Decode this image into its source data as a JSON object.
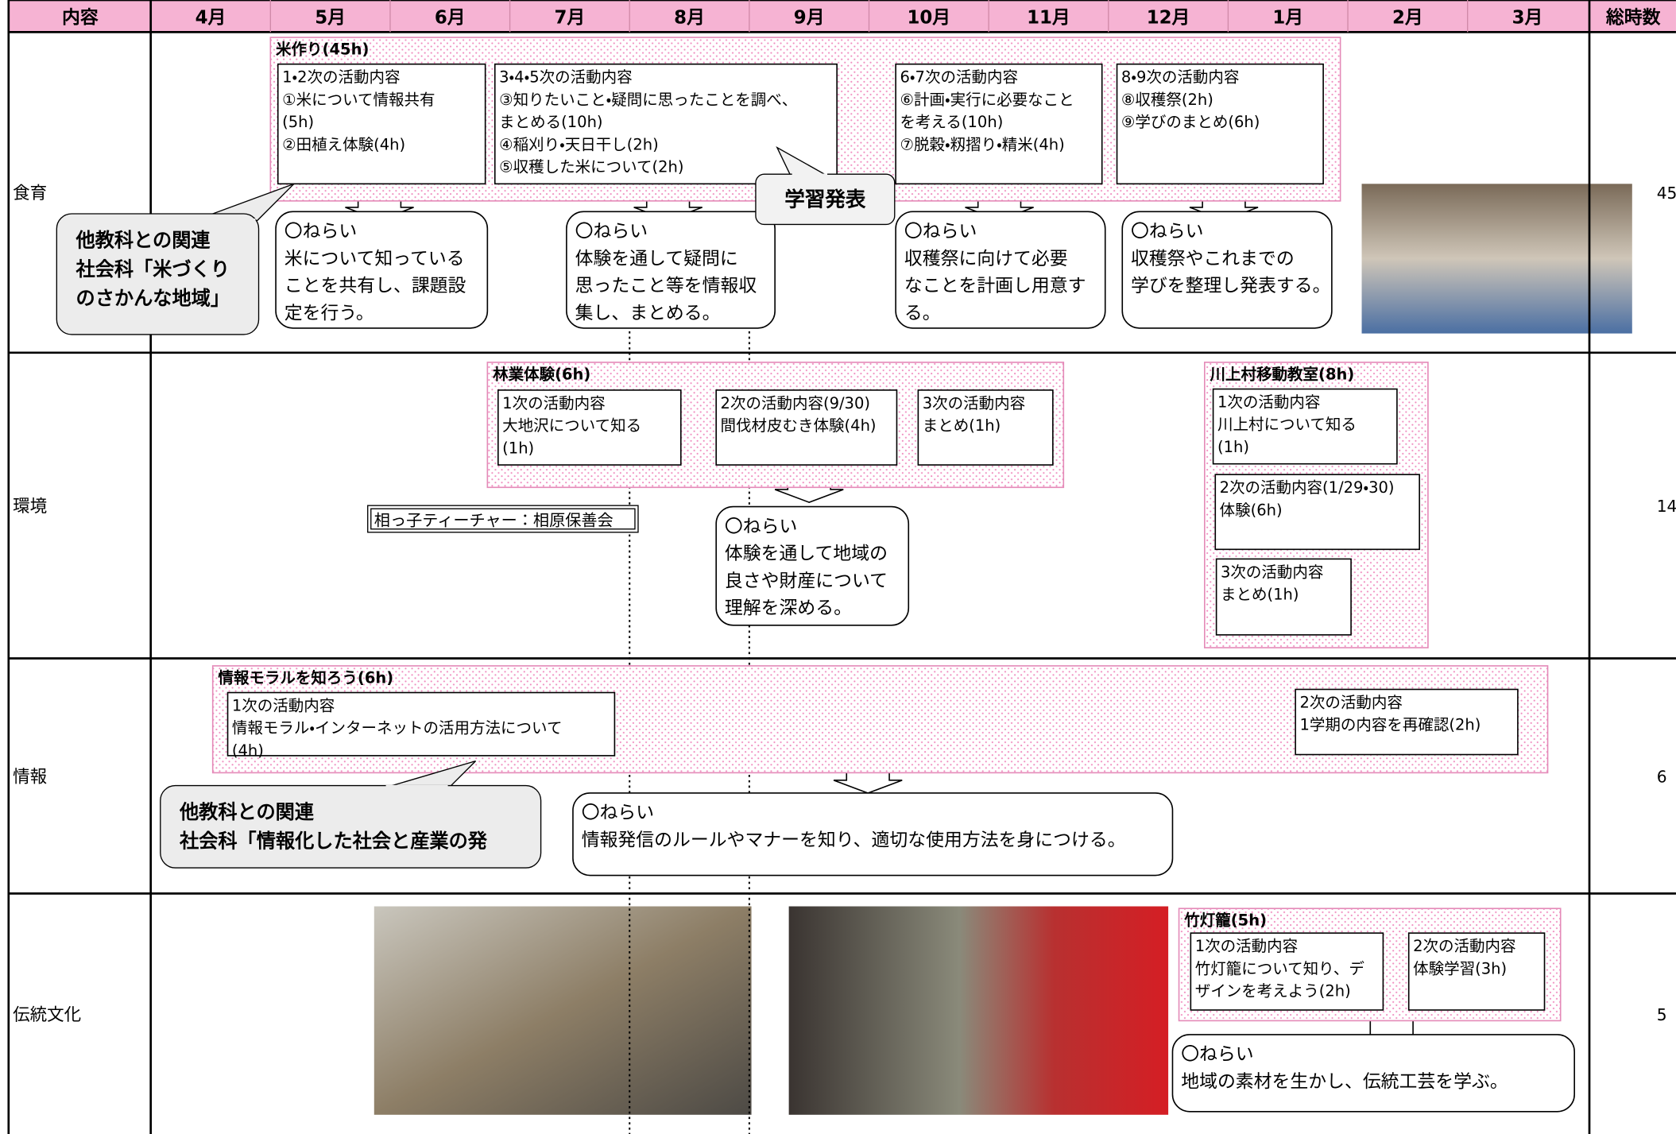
{
  "header": {
    "columns": [
      "内容",
      "4月",
      "5月",
      "6月",
      "7月",
      "8月",
      "9月",
      "10月",
      "11月",
      "12月",
      "1月",
      "2月",
      "3月",
      "総時数"
    ]
  },
  "rows": [
    {
      "label": "食育",
      "total": 45,
      "units": [
        {
          "title": "米作り(45h)",
          "activities": [
            [
              "1・2次の活動内容",
              "①米について情報共有",
              "(5h)",
              "②田植え体験(4h)"
            ],
            [
              "3・4・5次の活動内容",
              "③知りたいこと・疑問に思ったことを調べ、",
              "まとめる(10h)",
              "④稲刈り・天日干し(2h)",
              "⑤収穫した米について(2h)"
            ],
            [
              "6・7次の活動内容",
              "⑥計画・実行に必要なこと",
              "を考える(10h)",
              "⑦脱穀・籾摺り・精米(4h)"
            ],
            [
              "8・9次の活動内容",
              "⑧収穫祭(2h)",
              "⑨学びのまとめ(6h)"
            ]
          ]
        }
      ],
      "aims": [
        [
          "〇ねらい",
          "米について知っている",
          "ことを共有し、課題設",
          "定を行う。"
        ],
        [
          "〇ねらい",
          "体験を通して疑問に",
          "思ったこと等を情報収",
          "集し、まとめる。"
        ],
        [
          "〇ねらい",
          "収穫祭に向けて必要",
          "なことを計画し用意す",
          "る。"
        ],
        [
          "〇ねらい",
          "収穫祭やこれまでの",
          "学びを整理し発表する。"
        ]
      ],
      "relation": [
        "他教科との関連",
        "社会科「米づくり",
        "のさかんな地域」"
      ],
      "callout": "学習発表"
    },
    {
      "label": "環境",
      "total": 14,
      "units": [
        {
          "title": "林業体験(6h)",
          "activities": [
            [
              "1次の活動内容",
              "大地沢について知る",
              "(1h)"
            ],
            [
              "2次の活動内容(9/30)",
              "間伐材皮むき体験(4h)"
            ],
            [
              "3次の活動内容",
              "まとめ(1h)"
            ]
          ]
        },
        {
          "title": "川上村移動教室(8h)",
          "activities": [
            [
              "1次の活動内容",
              "川上村について知る",
              "(1h)"
            ],
            [
              "2次の活動内容(1/29・30)",
              "体験(6h)"
            ],
            [
              "3次の活動内容",
              "まとめ(1h)"
            ]
          ]
        }
      ],
      "aims": [
        [
          "〇ねらい",
          "体験を通して地域の",
          "良さや財産について",
          "理解を深める。"
        ]
      ],
      "note": "相っ子ティーチャー：相原保善会"
    },
    {
      "label": "情報",
      "total": 6,
      "units": [
        {
          "title": "情報モラルを知ろう(6h)",
          "activities": [
            [
              "1次の活動内容",
              "情報モラル・インターネットの活用方法について",
              "(4h)"
            ],
            [
              "2次の活動内容",
              "1学期の内容を再確認(2h)"
            ]
          ]
        }
      ],
      "aims": [
        [
          "〇ねらい",
          "情報発信のルールやマナーを知り、適切な使用方法を身につける。"
        ]
      ],
      "relation": [
        "他教科との関連",
        "社会科「情報化した社会と産業の発"
      ]
    },
    {
      "label": "伝統文化",
      "total": 5,
      "units": [
        {
          "title": "竹灯籠(5h)",
          "activities": [
            [
              "1次の活動内容",
              "竹灯籠について知り、デ",
              "ザインを考えよう(2h)"
            ],
            [
              "2次の活動内容",
              "体験学習(3h)"
            ]
          ]
        }
      ],
      "aims": [
        [
          "〇ねらい",
          "地域の素材を生かし、伝統工芸を学ぶ。"
        ]
      ]
    }
  ]
}
